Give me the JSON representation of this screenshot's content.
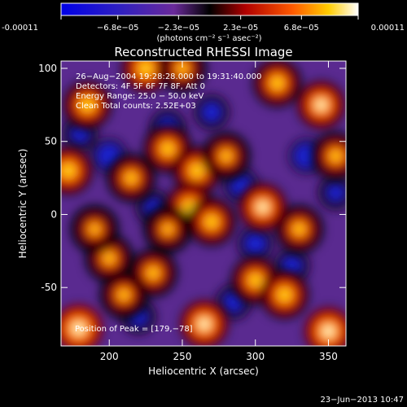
{
  "colorbar": {
    "tick_labels": [
      "-0.00011",
      "−6.8e−05",
      "−2.3e−05",
      "2.3e−05",
      "6.8e−05",
      "0.00011"
    ],
    "tick_values": [
      -0.00011,
      -6.8e-05,
      -2.3e-05,
      2.3e-05,
      6.8e-05,
      0.00011
    ],
    "range": [
      -0.00011,
      0.00011
    ],
    "units_label": "(photons cm⁻² s⁻¹ asec⁻²)",
    "colors": [
      "#0000e0",
      "#4a20b0",
      "#6a2a9a",
      "#000000",
      "#c00000",
      "#ff6000",
      "#ffd000",
      "#ffffff"
    ]
  },
  "chart_data": {
    "type": "heatmap",
    "title": "Reconstructed RHESSI Image",
    "xlabel": "Heliocentric X (arcsec)",
    "ylabel": "Heliocentric Y (arcsec)",
    "xlim": [
      167,
      362
    ],
    "ylim": [
      -90,
      105
    ],
    "x_ticks": [
      200,
      250,
      300,
      350
    ],
    "y_ticks": [
      -50,
      0,
      50,
      100
    ],
    "annotations": [
      "26−Aug−2004 19:28:28.000 to 19:31:40.000",
      "Detectors: 4F 5F 6F 7F 8F, Att 0",
      "Energy Range: 25.0 − 50.0 keV",
      "Clean    Total counts: 2.52E+03"
    ],
    "peak_label": "Position of Peak = [179,−78]",
    "peak_position": [
      179,
      -78
    ],
    "blobs": [
      [
        179,
        -78,
        1.0
      ],
      [
        172,
        30,
        0.8
      ],
      [
        185,
        75,
        0.75
      ],
      [
        225,
        100,
        0.8
      ],
      [
        250,
        100,
        0.55
      ],
      [
        315,
        90,
        0.7
      ],
      [
        345,
        75,
        0.85
      ],
      [
        355,
        40,
        0.6
      ],
      [
        215,
        25,
        0.6
      ],
      [
        240,
        45,
        0.7
      ],
      [
        260,
        30,
        0.75
      ],
      [
        280,
        40,
        0.55
      ],
      [
        255,
        5,
        0.8
      ],
      [
        270,
        -5,
        0.7
      ],
      [
        240,
        -10,
        0.5
      ],
      [
        305,
        5,
        0.85
      ],
      [
        330,
        -10,
        0.6
      ],
      [
        200,
        -30,
        0.55
      ],
      [
        230,
        -40,
        0.6
      ],
      [
        265,
        -75,
        0.9
      ],
      [
        300,
        -45,
        0.7
      ],
      [
        320,
        -55,
        0.75
      ],
      [
        350,
        -80,
        0.95
      ],
      [
        190,
        -10,
        0.5
      ],
      [
        210,
        -55,
        0.55
      ]
    ],
    "negatives": [
      [
        200,
        40,
        1.0
      ],
      [
        335,
        40,
        1.0
      ],
      [
        290,
        20,
        0.8
      ],
      [
        240,
        60,
        0.7
      ],
      [
        300,
        -20,
        0.8
      ],
      [
        325,
        -35,
        0.7
      ],
      [
        180,
        55,
        0.6
      ],
      [
        220,
        -70,
        0.6
      ],
      [
        270,
        70,
        0.7
      ],
      [
        355,
        15,
        0.6
      ],
      [
        230,
        5,
        0.6
      ],
      [
        285,
        -60,
        0.7
      ]
    ]
  },
  "footer": {
    "timestamp": "23−Jun−2013 10:47"
  }
}
